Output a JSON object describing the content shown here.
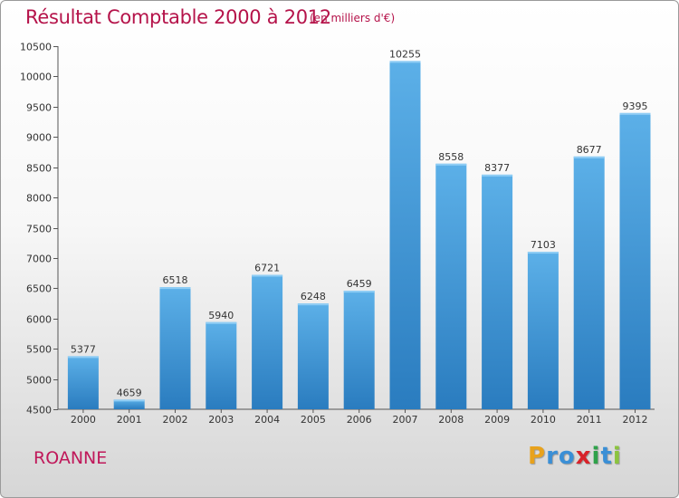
{
  "chart_data": {
    "type": "bar",
    "title": "Résultat Comptable 2000 à 2012",
    "subtitle": "(en milliers d'€)",
    "categories": [
      "2000",
      "2001",
      "2002",
      "2003",
      "2004",
      "2005",
      "2006",
      "2007",
      "2008",
      "2009",
      "2010",
      "2011",
      "2012"
    ],
    "values": [
      5377,
      4659,
      6518,
      5940,
      6721,
      6248,
      6459,
      10255,
      8558,
      8377,
      7103,
      8677,
      9395
    ],
    "value_labels": [
      "5377",
      "4659",
      "6518",
      "5940",
      "6721",
      "6248",
      "6459",
      "10255",
      "8558",
      "8377",
      "7103",
      "8677",
      "9395"
    ],
    "ylim": [
      4500,
      10500
    ],
    "yticks": [
      4500,
      5000,
      5500,
      6000,
      6500,
      7000,
      7500,
      8000,
      8500,
      9000,
      9500,
      10000,
      10500
    ],
    "xlabel": "",
    "ylabel": "",
    "bar_color_top": "#5cb0e8",
    "bar_color_bottom": "#2a7cbf"
  },
  "footer": {
    "city": "ROANNE"
  },
  "logo": {
    "letters": [
      "P",
      "r",
      "o",
      "x",
      "i",
      "t",
      "i"
    ],
    "colors": [
      "#e8a21c",
      "#3a8fd6",
      "#3a8fd6",
      "#d8232a",
      "#2ea24a",
      "#3a8fd6",
      "#8bc43f"
    ]
  },
  "colors": {
    "title": "#b5134a"
  }
}
